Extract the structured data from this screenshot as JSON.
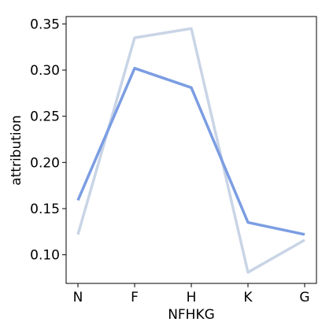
{
  "chart_data": {
    "type": "line",
    "title": "",
    "xlabel": "NFHKG",
    "ylabel": "attribution",
    "categories": [
      "N",
      "F",
      "H",
      "K",
      "G"
    ],
    "series": [
      {
        "values": [
          0.159,
          0.302,
          0.281,
          0.135,
          0.122
        ],
        "color": "#7b9de2"
      },
      {
        "values": [
          0.122,
          0.335,
          0.345,
          0.081,
          0.116
        ],
        "color": "#c9d5e6"
      }
    ],
    "ylim": [
      0.069,
      0.358
    ],
    "yticks": [
      0.1,
      0.15,
      0.2,
      0.25,
      0.3,
      0.35
    ],
    "ytick_labels": [
      "0.10",
      "0.15",
      "0.20",
      "0.25",
      "0.30",
      "0.35"
    ],
    "grid": false,
    "legend": "none"
  }
}
